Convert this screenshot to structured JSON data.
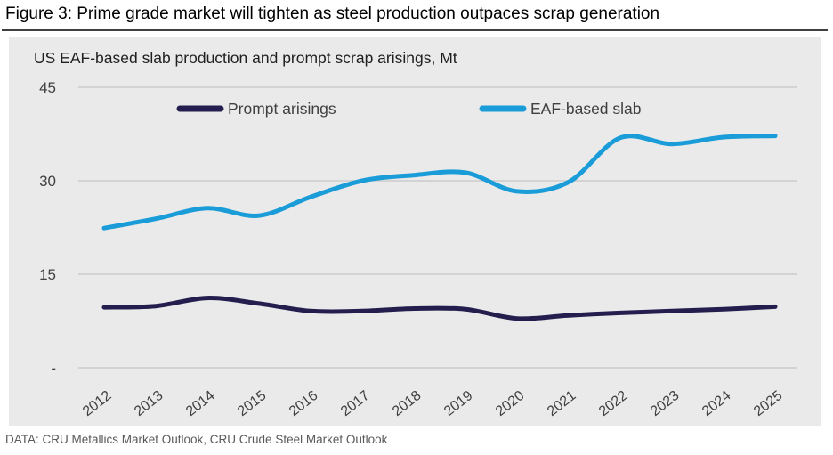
{
  "title": "Figure 3: Prime grade market will tighten as steel production outpaces scrap generation",
  "footer": {
    "source": "DATA: CRU Metallics Market Outlook, CRU Crude Steel Market Outlook"
  },
  "colors": {
    "prompt_arisings": "#241e4e",
    "eaf_based_slab": "#1a9cd8",
    "panel_background": "#eaeaea",
    "gridline": "#c5c5c5",
    "axis_text": "#404040",
    "title_rule": "#3f3f3f"
  },
  "chart_data": {
    "type": "line",
    "title": "US EAF-based slab production and prompt scrap arisings, Mt",
    "xlabel": "",
    "ylabel": "Mt",
    "categories": [
      "2012",
      "2013",
      "2014",
      "2015",
      "2016",
      "2017",
      "2018",
      "2019",
      "2020",
      "2021",
      "2022",
      "2023",
      "2024",
      "2025"
    ],
    "series": [
      {
        "name": "Prompt arisings",
        "color": "#241e4e",
        "values": [
          9.7,
          9.9,
          11.2,
          10.3,
          9.1,
          9.1,
          9.5,
          9.4,
          7.9,
          8.4,
          8.8,
          9.1,
          9.4,
          9.8
        ]
      },
      {
        "name": "EAF-based slab",
        "color": "#1a9cd8",
        "values": [
          22.4,
          23.9,
          25.6,
          24.4,
          27.4,
          30.0,
          30.9,
          31.3,
          28.3,
          29.8,
          36.9,
          35.9,
          37.0,
          37.2
        ]
      }
    ],
    "ylim": [
      0,
      45
    ],
    "yticks": [
      {
        "value": 45,
        "label": "45"
      },
      {
        "value": 30,
        "label": "30"
      },
      {
        "value": 15,
        "label": "15"
      },
      {
        "value": 0,
        "label": "-"
      }
    ],
    "grid": "horizontal",
    "legend_position": "top",
    "line_style": "smooth"
  }
}
